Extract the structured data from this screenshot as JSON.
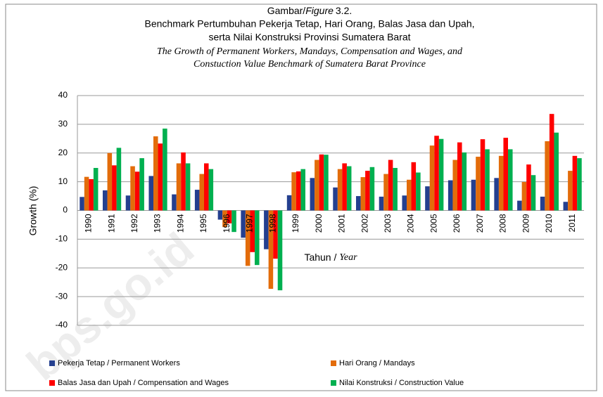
{
  "chart_data": {
    "type": "bar",
    "figure_label": {
      "prefix": "Gambar/",
      "italic": "Figure",
      "number": "3.2."
    },
    "title": [
      "Benchmark Pertumbuhan Pekerja Tetap, Hari Orang, Balas Jasa dan Upah,",
      "serta Nilai Konstruksi Provinsi Sumatera Barat"
    ],
    "subtitle": [
      "The Growth of Permanent Workers, Mandays, Compensation and Wages, and",
      "Constuction Value Benchmark of Sumatera Barat Province"
    ],
    "ylabel": "Growth (%)",
    "xlabel": "Tahun /",
    "xlabel_en": "Year",
    "watermark": "bps.go.id",
    "categories": [
      "1990",
      "1991",
      "1992",
      "1993",
      "1994",
      "1995",
      "1996",
      "1997",
      "1998",
      "1999",
      "2000",
      "2001",
      "2002",
      "2003",
      "2004",
      "2005",
      "2006",
      "2007",
      "2008",
      "2009",
      "2010",
      "2011"
    ],
    "series": [
      {
        "name": "Pekerja Tetap / Permanent Workers",
        "color": "#243f8f",
        "values": [
          4.7,
          7,
          5.2,
          12,
          5.6,
          7.2,
          -3.2,
          -9.5,
          -13.5,
          5.3,
          11.3,
          8,
          5,
          4.8,
          5.2,
          8.4,
          10.5,
          10.7,
          11.3,
          3.4,
          4.8,
          3
        ]
      },
      {
        "name": "Hari Orang / Mandays",
        "color": "#e36c0a",
        "values": [
          11.7,
          20,
          15.4,
          25.8,
          16.4,
          12.7,
          -5.8,
          -19.3,
          -27.3,
          13.3,
          17.6,
          14.4,
          11.6,
          12.7,
          10.7,
          22.6,
          17.6,
          18.7,
          19,
          9.9,
          24.1,
          13.8
        ]
      },
      {
        "name": "Balas Jasa dan Upah / Compensation and Wages",
        "color": "#ff0000",
        "values": [
          10.9,
          15.7,
          13.5,
          23.3,
          20.2,
          16.4,
          -4.5,
          -14.5,
          -16.8,
          13.6,
          19.5,
          16.4,
          13.8,
          17.6,
          16.8,
          26,
          23.7,
          24.8,
          25.3,
          16,
          33.6,
          19
        ]
      },
      {
        "name": "Nilai Konstruksi / Construction Value",
        "color": "#00b050",
        "values": [
          14.8,
          21.8,
          18.2,
          28.5,
          16.4,
          14.4,
          -7.5,
          -19,
          -27.8,
          14.4,
          19.4,
          15.4,
          15.1,
          14.8,
          13.2,
          24.9,
          20.2,
          21.3,
          21.3,
          12.3,
          27.1,
          18.2
        ]
      }
    ],
    "ylim": [
      -40,
      40
    ],
    "yticks": [
      -40,
      -30,
      -20,
      -10,
      0,
      10,
      20,
      30,
      40
    ],
    "grid": true
  }
}
